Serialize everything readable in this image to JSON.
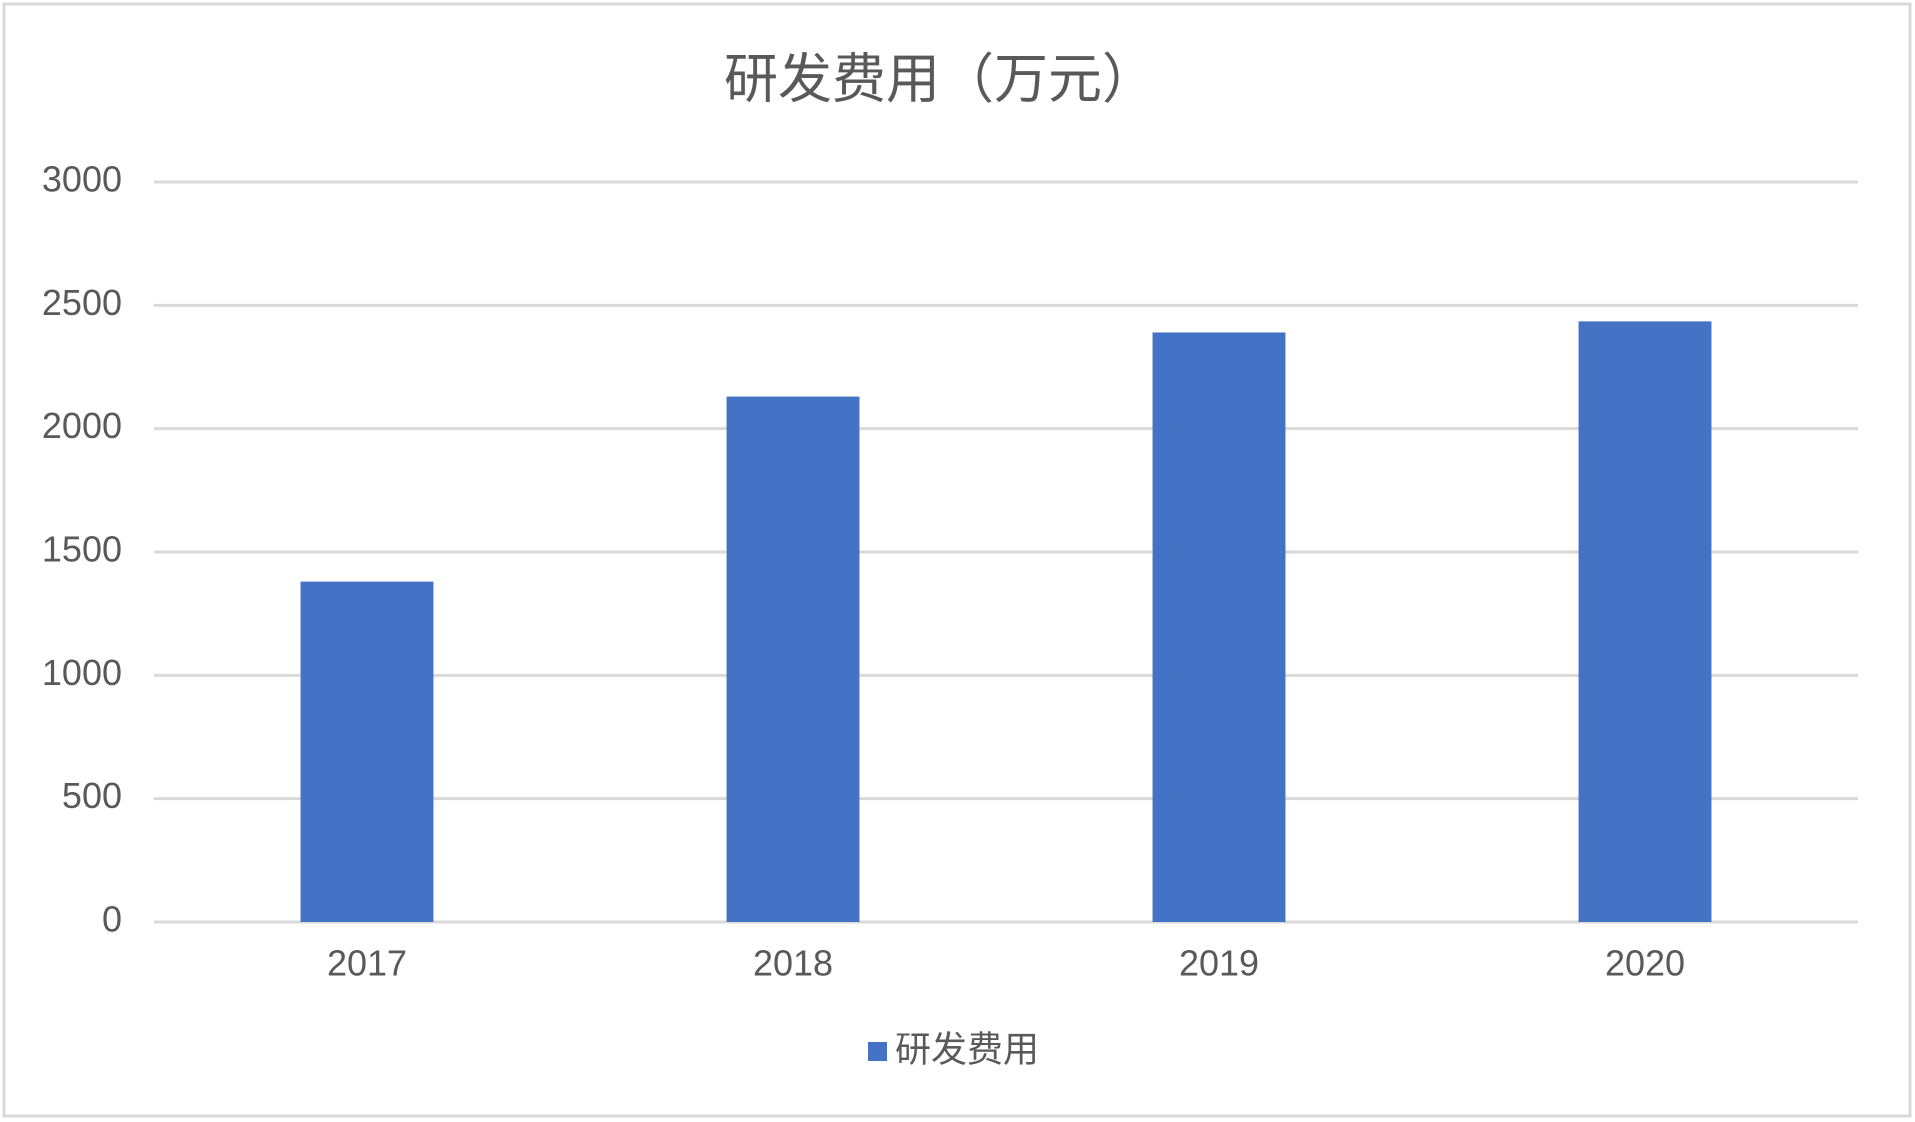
{
  "chart_data": {
    "type": "bar",
    "title": "研发费用（万元）",
    "categories": [
      "2017",
      "2018",
      "2019",
      "2020"
    ],
    "series": [
      {
        "name": "研发费用",
        "color": "#4472c4",
        "values": [
          1380,
          2130,
          2390,
          2435
        ]
      }
    ],
    "ylim": [
      0,
      3000
    ],
    "yticks": [
      0,
      500,
      1000,
      1500,
      2000,
      2500,
      3000
    ],
    "grid": true,
    "legend": "bottom"
  }
}
